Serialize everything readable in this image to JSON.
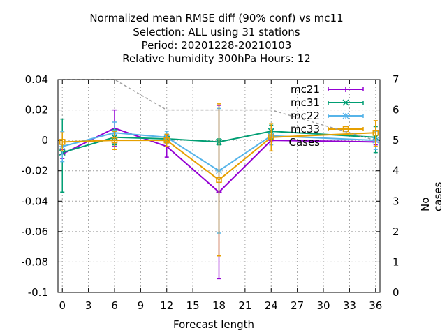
{
  "titles": {
    "line1": "Normalized mean RMSE diff (90% conf) vs mc11",
    "line2": "Selection: ALL using    31 stations",
    "line3": "Period: 20201228-20210103",
    "line4": "Relative humidity 300hPa   Hours:  12"
  },
  "chart_data": {
    "type": "line",
    "xlabel": "Forecast length",
    "ylabel": "",
    "y2label": "No cases",
    "xlim": [
      -0.5,
      36.5
    ],
    "ylim": [
      -0.1,
      0.04
    ],
    "y2lim": [
      0,
      7
    ],
    "xticks": [
      0,
      3,
      6,
      9,
      12,
      15,
      18,
      21,
      24,
      27,
      30,
      33,
      36
    ],
    "yticks": [
      0.04,
      0.02,
      0,
      -0.02,
      -0.04,
      -0.06,
      -0.08,
      -0.1
    ],
    "ytick_labels": [
      "0.04",
      "0.02",
      "0",
      "-0.02",
      "-0.04",
      "-0.06",
      "-0.08",
      "-0.1"
    ],
    "y2ticks": [
      7,
      6,
      5,
      4,
      3,
      2,
      1,
      0
    ],
    "grid": true,
    "legend_position": "top-right",
    "series": [
      {
        "name": "mc21",
        "color": "#9400d3",
        "marker": "plus",
        "x": [
          0,
          6,
          12,
          18,
          24,
          36
        ],
        "values": [
          -0.009,
          0.008,
          -0.004,
          -0.034,
          0.0,
          -0.001
        ],
        "err_low": [
          -0.012,
          -0.004,
          -0.011,
          -0.091,
          -0.001,
          -0.003
        ],
        "err_high": [
          -0.006,
          0.02,
          0.003,
          0.023,
          0.002,
          0.001
        ]
      },
      {
        "name": "mc31",
        "color": "#009e73",
        "marker": "cross",
        "x": [
          0,
          6,
          12,
          18,
          24,
          36
        ],
        "values": [
          -0.008,
          0.002,
          0.001,
          -0.001,
          0.006,
          0.002
        ],
        "err_low": [
          -0.034,
          -0.003,
          -0.001,
          -0.003,
          0.001,
          -0.008
        ],
        "err_high": [
          0.014,
          0.007,
          0.004,
          0.001,
          0.01,
          0.009
        ]
      },
      {
        "name": "mc22",
        "color": "#56b4e9",
        "marker": "star",
        "x": [
          0,
          6,
          12,
          18,
          24,
          36
        ],
        "values": [
          -0.004,
          0.005,
          0.002,
          -0.02,
          0.003,
          0.0
        ],
        "err_low": [
          -0.014,
          -0.002,
          -0.002,
          -0.061,
          -0.003,
          -0.006
        ],
        "err_high": [
          0.006,
          0.012,
          0.006,
          0.021,
          0.008,
          0.006
        ]
      },
      {
        "name": "mc33",
        "color": "#e69f00",
        "marker": "square",
        "x": [
          0,
          6,
          12,
          18,
          24,
          36
        ],
        "values": [
          -0.001,
          0.0,
          0.0,
          -0.026,
          0.002,
          0.005
        ],
        "err_low": [
          -0.007,
          -0.006,
          -0.004,
          -0.076,
          -0.007,
          -0.004
        ],
        "err_high": [
          0.005,
          0.006,
          0.004,
          0.024,
          0.011,
          0.013
        ]
      },
      {
        "name": "Cases",
        "color": "#a0a0a0",
        "axis": "y2",
        "style": "dashed",
        "x": [
          0,
          6,
          12,
          18,
          24,
          36
        ],
        "values": [
          7,
          7,
          6,
          6,
          6,
          5
        ]
      }
    ]
  }
}
